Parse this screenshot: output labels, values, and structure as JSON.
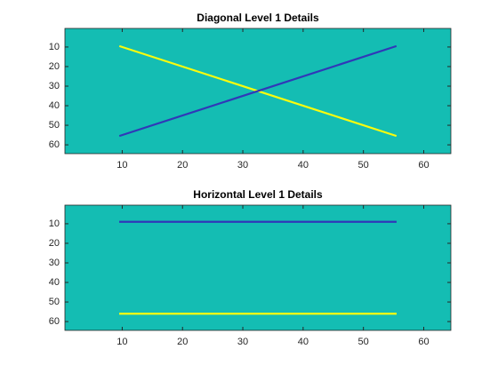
{
  "chart_data": [
    {
      "type": "image",
      "title": "Diagonal Level 1 Details",
      "background": "#14bdb3",
      "xlim": [
        0.5,
        64.5
      ],
      "ylim": [
        64.5,
        0.5
      ],
      "xticks": [
        10,
        20,
        30,
        40,
        50,
        60
      ],
      "yticks": [
        10,
        20,
        30,
        40,
        50,
        60
      ],
      "series": [
        {
          "color": "#f9fb0e",
          "x": [
            10,
            55
          ],
          "values": [
            10,
            55
          ]
        },
        {
          "color": "#3038b8",
          "x": [
            10,
            55
          ],
          "values": [
            55,
            10
          ]
        }
      ]
    },
    {
      "type": "image",
      "title": "Horizontal Level 1 Details",
      "background": "#14bdb3",
      "xlim": [
        0.5,
        64.5
      ],
      "ylim": [
        64.5,
        0.5
      ],
      "xticks": [
        10,
        20,
        30,
        40,
        50,
        60
      ],
      "yticks": [
        10,
        20,
        30,
        40,
        50,
        60
      ],
      "series": [
        {
          "color": "#3038b8",
          "x": [
            10,
            55
          ],
          "values": [
            9,
            9
          ]
        },
        {
          "color": "#f9fb0e",
          "x": [
            10,
            55
          ],
          "values": [
            56,
            56
          ]
        }
      ]
    }
  ]
}
